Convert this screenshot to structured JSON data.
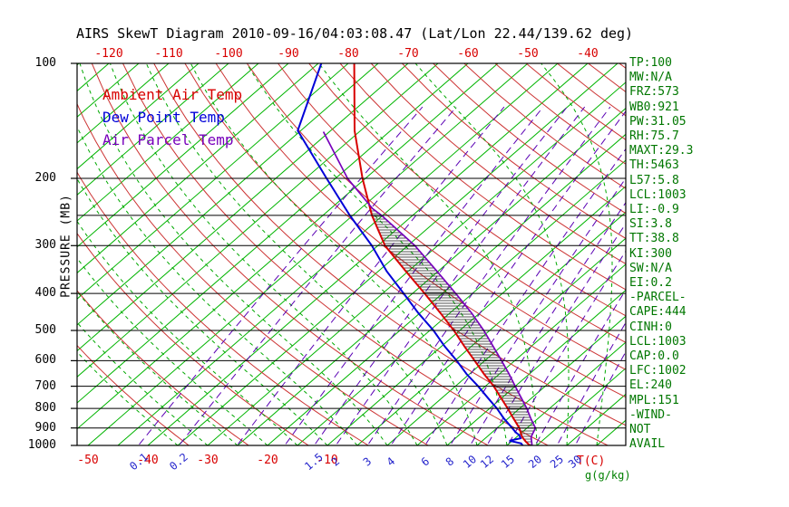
{
  "title": "AIRS SkewT Diagram 2010-09-16/04:03:08.47 (Lat/Lon 22.44/139.62 deg)",
  "legend": [
    {
      "label": "Ambient Air Temp",
      "color": "#d80000"
    },
    {
      "label": "Dew Point Temp",
      "color": "#0000d8"
    },
    {
      "label": "Air Parcel Temp",
      "color": "#7700bb"
    }
  ],
  "y_axis": {
    "label": "PRESSURE (MB)",
    "ticks": [
      100,
      200,
      300,
      400,
      500,
      600,
      700,
      800,
      900,
      1000
    ]
  },
  "top_axis": {
    "ticks": [
      -120,
      -110,
      -100,
      -90,
      -80,
      -70,
      -60,
      -50,
      -40
    ],
    "color": "#d80000"
  },
  "bottom_axis": {
    "temp_ticks": [
      -50,
      -40,
      -30,
      -20,
      -10
    ],
    "label": "T(C)",
    "color": "#d80000"
  },
  "mixing_ratio": {
    "values": [
      0.1,
      0.2,
      0.5,
      1,
      1.5,
      2,
      3,
      4,
      6,
      8,
      10,
      12,
      15,
      20,
      25,
      30
    ],
    "labeled": [
      0.1,
      0.2,
      1.5,
      2,
      3,
      4,
      6,
      8,
      10,
      12,
      15,
      20,
      25,
      30
    ],
    "unit_label": "g(g/kg)",
    "label_color": "#2424cc"
  },
  "stats_panel": {
    "color": "#007700",
    "lines": [
      "TP:100",
      "MW:N/A",
      "FRZ:573",
      "WB0:921",
      "PW:31.05",
      "RH:75.7",
      "MAXT:29.3",
      "TH:5463",
      "L57:5.8",
      "LCL:1003",
      "LI:-0.9",
      "SI:3.8",
      "TT:38.8",
      "KI:300",
      "SW:N/A",
      "EI:0.2",
      "-PARCEL-",
      "CAPE:444",
      "CINH:0",
      "LCL:1003",
      "CAP:0.0",
      "LFC:1002",
      "EL:240",
      "MPL:151",
      "-WIND-",
      "NOT",
      "AVAIL"
    ]
  },
  "colors": {
    "isotherm": "#00b400",
    "moist_adiabat": "#00a800",
    "dry_adiabat": "#cc3333",
    "mixing_ratio": "#5a00b4",
    "pressure_line": "#000000",
    "hatch": "#1a1a1a"
  },
  "chart_data": {
    "type": "line",
    "title": "AIRS SkewT Diagram 2010-09-16/04:03:08.47 (Lat/Lon 22.44/139.62 deg)",
    "x_axis_label": "T(C)",
    "y_axis_label": "PRESSURE (MB)",
    "y_scale": "log",
    "y_range_mb": [
      100,
      1000
    ],
    "x_range_c_at_surface": [
      -52,
      40
    ],
    "pressure_lines": [
      200,
      250,
      300,
      400,
      500,
      600,
      700,
      800,
      900,
      1000
    ],
    "isotherms_c": {
      "start": -130,
      "end": 45,
      "step": 5
    },
    "dry_adiabats_k": {
      "start": 240,
      "end": 470,
      "step": 10
    },
    "moist_adiabats_c": {
      "start": -35,
      "end": 40,
      "step": 5
    },
    "series": [
      {
        "name": "Ambient Air Temp",
        "color": "#d80000",
        "width": 2,
        "points": [
          [
            1008,
            24.2
          ],
          [
            1000,
            23.8
          ],
          [
            975,
            22.3
          ],
          [
            950,
            20.9
          ],
          [
            925,
            19.8
          ],
          [
            900,
            18.7
          ],
          [
            850,
            15.9
          ],
          [
            800,
            13.0
          ],
          [
            750,
            9.8
          ],
          [
            700,
            6.4
          ],
          [
            650,
            2.4
          ],
          [
            600,
            -1.7
          ],
          [
            550,
            -6.2
          ],
          [
            500,
            -11.0
          ],
          [
            450,
            -16.6
          ],
          [
            400,
            -23.0
          ],
          [
            350,
            -30.4
          ],
          [
            300,
            -38.8
          ],
          [
            250,
            -46.8
          ],
          [
            200,
            -55.5
          ],
          [
            150,
            -66.0
          ],
          [
            100,
            -79.0
          ]
        ]
      },
      {
        "name": "Dew Point Temp",
        "color": "#0000d8",
        "width": 2,
        "points": [
          [
            1008,
            23.4
          ],
          [
            1000,
            22.6
          ],
          [
            988,
            22.0
          ],
          [
            972,
            19.5
          ],
          [
            958,
            20.9
          ],
          [
            940,
            20.1
          ],
          [
            925,
            19.0
          ],
          [
            900,
            17.5
          ],
          [
            850,
            14.3
          ],
          [
            800,
            11.2
          ],
          [
            750,
            7.6
          ],
          [
            700,
            3.8
          ],
          [
            650,
            -0.5
          ],
          [
            600,
            -4.7
          ],
          [
            550,
            -9.5
          ],
          [
            500,
            -14.4
          ],
          [
            450,
            -20.3
          ],
          [
            400,
            -26.5
          ],
          [
            350,
            -33.6
          ],
          [
            300,
            -41.0
          ],
          [
            250,
            -50.5
          ],
          [
            200,
            -61.5
          ],
          [
            150,
            -75.5
          ],
          [
            100,
            -84.5
          ]
        ]
      },
      {
        "name": "Air Parcel Temp",
        "color": "#7700bb",
        "width": 1.7,
        "points": [
          [
            1008,
            24.4
          ],
          [
            1000,
            24.2
          ],
          [
            950,
            22.4
          ],
          [
            900,
            21.4
          ],
          [
            850,
            18.8
          ],
          [
            800,
            16.2
          ],
          [
            750,
            13.2
          ],
          [
            700,
            10.0
          ],
          [
            650,
            6.6
          ],
          [
            600,
            2.8
          ],
          [
            550,
            -1.4
          ],
          [
            500,
            -6.0
          ],
          [
            450,
            -11.4
          ],
          [
            400,
            -17.8
          ],
          [
            350,
            -25.2
          ],
          [
            300,
            -33.8
          ],
          [
            250,
            -45.2
          ],
          [
            240,
            -48.0
          ],
          [
            200,
            -58.0
          ],
          [
            151,
            -71.0
          ]
        ]
      }
    ],
    "cape_hatch_between": [
      "Ambient Air Temp",
      "Air Parcel Temp"
    ],
    "cape_hatch_range_mb": [
      235,
      1008
    ]
  }
}
